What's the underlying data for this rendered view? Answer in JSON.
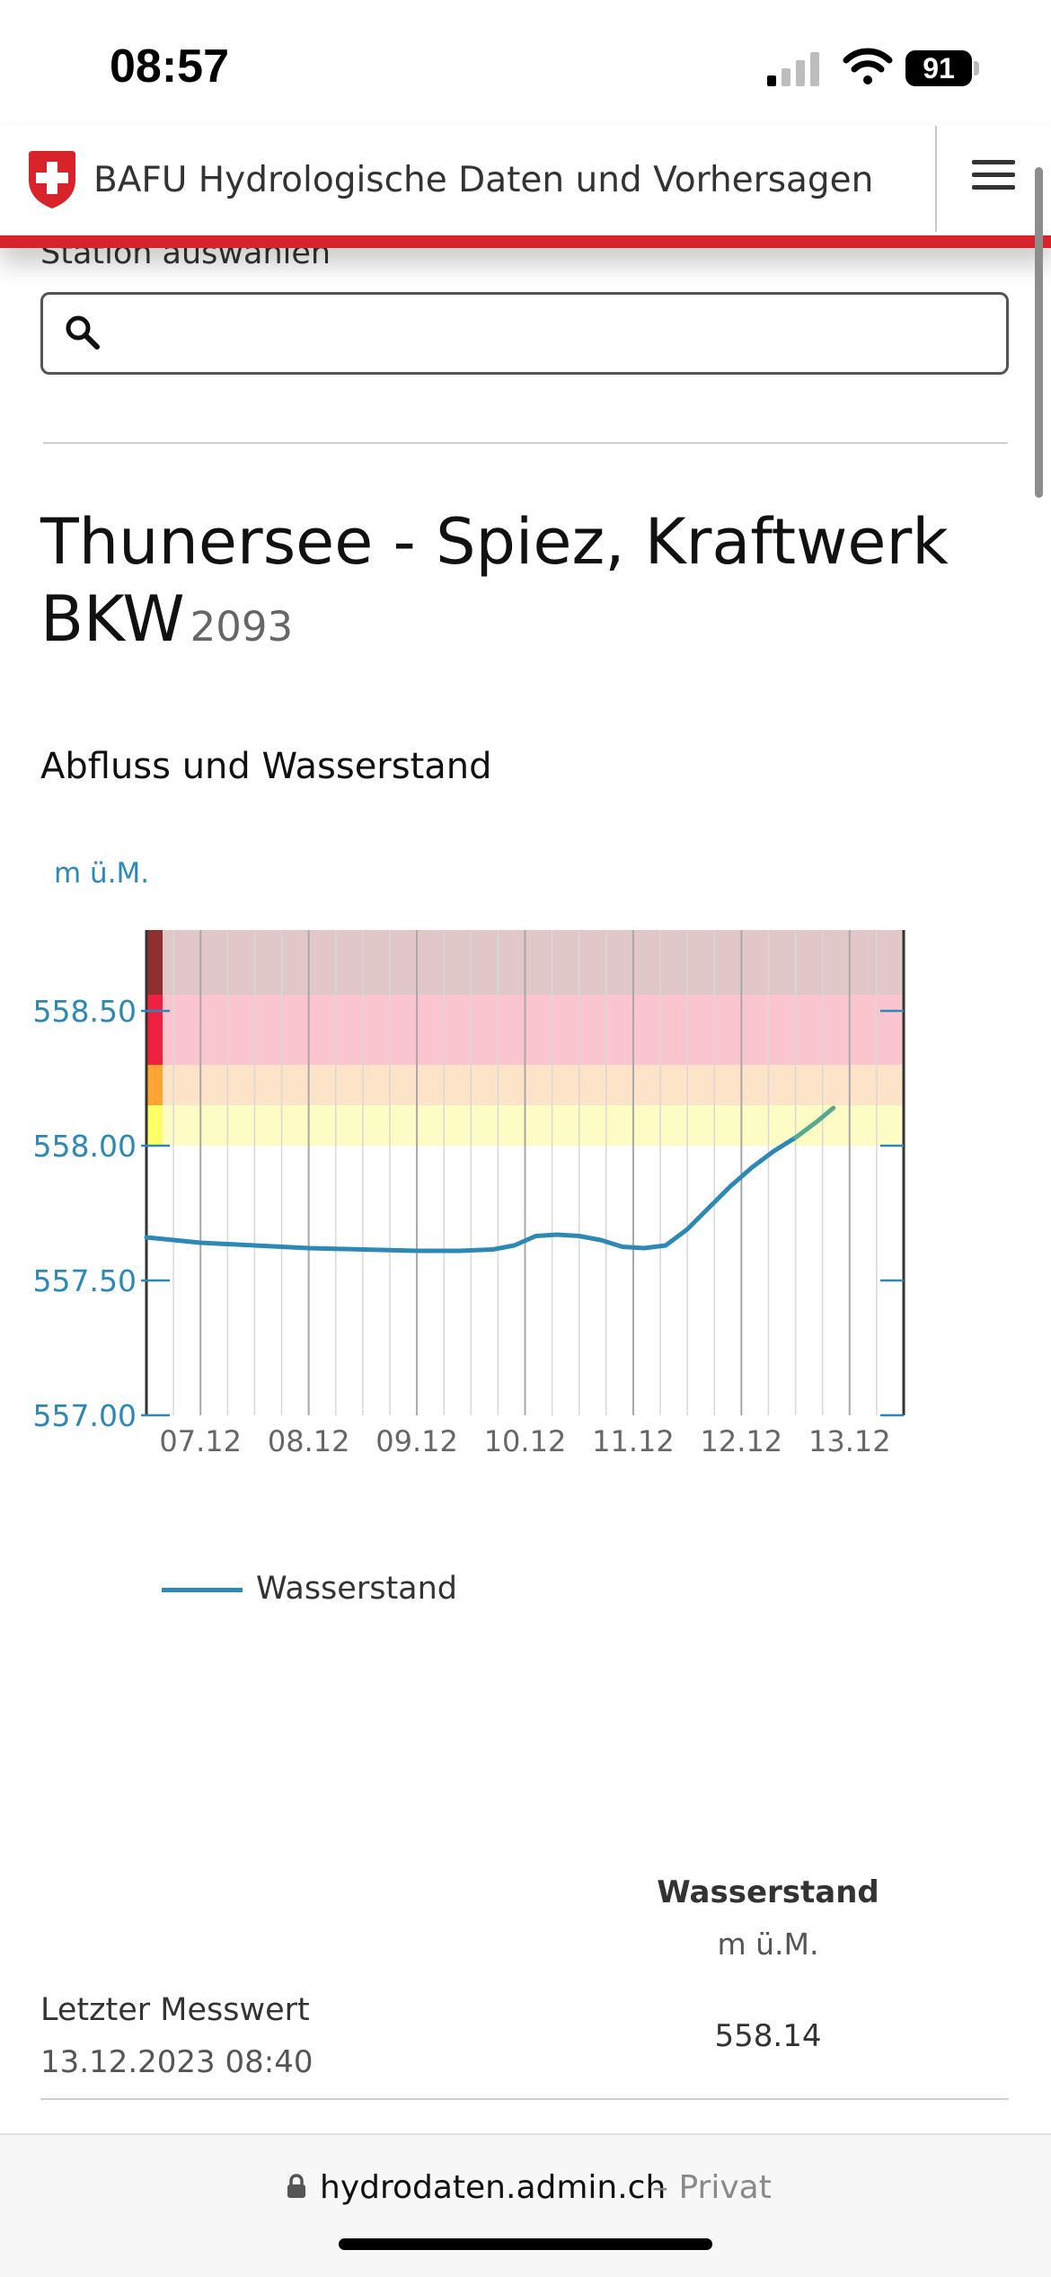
{
  "status_bar": {
    "time": "08:57",
    "battery": "91"
  },
  "header": {
    "title": "BAFU Hydrologische Daten und Vorhersagen"
  },
  "search": {
    "label": "Station auswählen",
    "placeholder": ""
  },
  "station": {
    "name_line1": "Thunersee - Spiez, Kraftwerk",
    "name_line2": "BKW",
    "id": "2093"
  },
  "chart_section": {
    "heading": "Abfluss und Wasserstand"
  },
  "chart_data": {
    "type": "line",
    "title": "",
    "ylabel": "m ü.M.",
    "xlabel": "",
    "ylim": [
      557.0,
      558.8
    ],
    "yticks": [
      557.0,
      557.5,
      558.0,
      558.5
    ],
    "ytick_labels": [
      "557.00",
      "557.50",
      "558.00",
      "558.50"
    ],
    "x_tick_labels": [
      "07.12",
      "08.12",
      "09.12",
      "10.12",
      "11.12",
      "12.12",
      "13.12"
    ],
    "x_range_days": [
      6.5,
      13.5
    ],
    "threshold_bands": [
      {
        "from": 558.0,
        "to": 558.15,
        "color": "#ffff66",
        "fill": "#fcfcc4"
      },
      {
        "from": 558.15,
        "to": 558.3,
        "color": "#ffa533",
        "fill": "#fde4c8"
      },
      {
        "from": 558.3,
        "to": 558.56,
        "color": "#f02040",
        "fill": "#fbc5cf"
      },
      {
        "from": 558.56,
        "to": 558.8,
        "color": "#8f2f2f",
        "fill": "#e2c7c9"
      }
    ],
    "series": [
      {
        "name": "Wasserstand",
        "color": "#2e88b6",
        "forecast_color": "#56a98e",
        "x_days": [
          6.5,
          7.0,
          7.5,
          8.0,
          8.5,
          9.0,
          9.4,
          9.7,
          9.9,
          10.1,
          10.3,
          10.5,
          10.7,
          10.9,
          11.1,
          11.3,
          11.5,
          11.7,
          11.9,
          12.1,
          12.3,
          12.5,
          12.7,
          12.85
        ],
        "values": [
          557.66,
          557.64,
          557.63,
          557.62,
          557.615,
          557.61,
          557.61,
          557.615,
          557.63,
          557.665,
          557.67,
          557.665,
          557.65,
          557.625,
          557.62,
          557.63,
          557.69,
          557.77,
          557.85,
          557.92,
          557.98,
          558.03,
          558.09,
          558.14
        ]
      }
    ],
    "legend": "bottom",
    "grid": true
  },
  "legend": {
    "label": "Wasserstand"
  },
  "table": {
    "column_header": "Wasserstand",
    "column_unit": "m ü.M.",
    "row_label": "Letzter Messwert",
    "row_date": "13.12.2023 08:40",
    "row_value": "558.14"
  },
  "browser": {
    "url": "hydrodaten.admin.ch",
    "private": "– Privat"
  }
}
